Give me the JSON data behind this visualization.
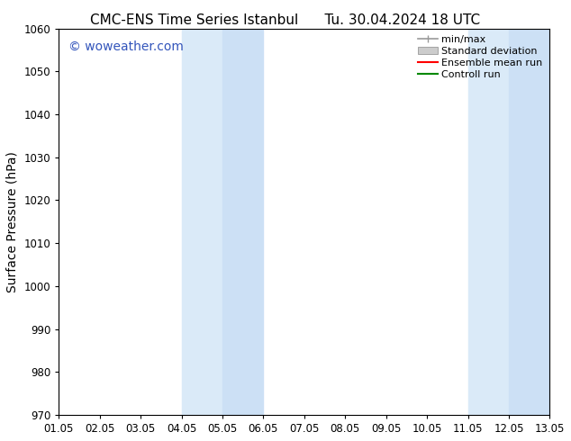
{
  "title_left": "CMC-ENS Time Series Istanbul",
  "title_right": "Tu. 30.04.2024 18 UTC",
  "ylabel": "Surface Pressure (hPa)",
  "xlabel": "",
  "ylim": [
    970,
    1060
  ],
  "yticks": [
    970,
    980,
    990,
    1000,
    1010,
    1020,
    1030,
    1040,
    1050,
    1060
  ],
  "xtick_labels": [
    "01.05",
    "02.05",
    "03.05",
    "04.05",
    "05.05",
    "06.05",
    "07.05",
    "08.05",
    "09.05",
    "10.05",
    "11.05",
    "12.05",
    "13.05"
  ],
  "xlim": [
    0,
    12
  ],
  "background_color": "#ffffff",
  "plot_bg_color": "#ffffff",
  "shaded_regions": [
    {
      "x_start": 3,
      "x_end": 4,
      "color": "#daeaf8"
    },
    {
      "x_start": 4,
      "x_end": 5,
      "color": "#cce0f5"
    },
    {
      "x_start": 10,
      "x_end": 11,
      "color": "#daeaf8"
    },
    {
      "x_start": 11,
      "x_end": 12,
      "color": "#cce0f5"
    }
  ],
  "watermark_text": "© woweather.com",
  "watermark_color": "#3355bb",
  "watermark_fontsize": 10,
  "legend_entries": [
    {
      "label": "min/max",
      "color": "#999999",
      "style": "minmax"
    },
    {
      "label": "Standard deviation",
      "color": "#cccccc",
      "style": "stdev"
    },
    {
      "label": "Ensemble mean run",
      "color": "#ff0000",
      "style": "line"
    },
    {
      "label": "Controll run",
      "color": "#008800",
      "style": "line"
    }
  ],
  "title_fontsize": 11,
  "axis_label_fontsize": 10,
  "tick_fontsize": 8.5,
  "legend_fontsize": 8
}
